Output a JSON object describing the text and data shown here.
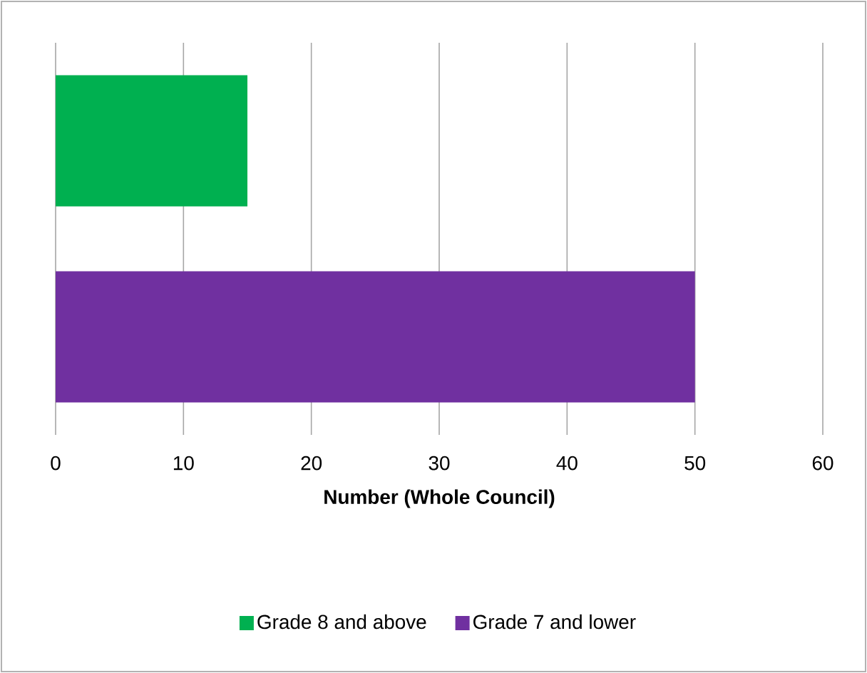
{
  "chart_data": {
    "type": "bar",
    "orientation": "horizontal",
    "categories": [
      null,
      null
    ],
    "series": [
      {
        "name": "Grade 8 and above",
        "color": "#00b050",
        "values": [
          15,
          null
        ]
      },
      {
        "name": "Grade 7 and lower",
        "color": "#7030a0",
        "values": [
          null,
          50
        ]
      }
    ],
    "xlim": [
      0,
      60
    ],
    "xticks": [
      0,
      10,
      20,
      30,
      40,
      50,
      60
    ],
    "xlabel": "Number (Whole Council)",
    "grid": "x",
    "legend": "bottom"
  }
}
